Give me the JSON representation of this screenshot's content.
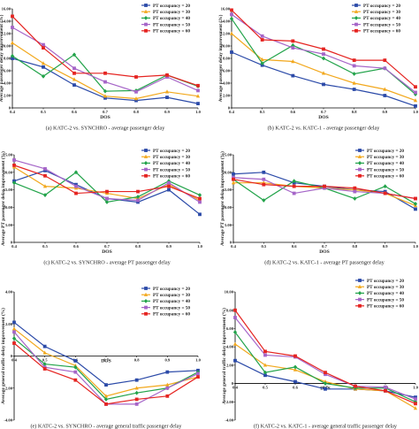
{
  "legend_prefix": "PT occupancy = ",
  "colors": {
    "20": "#2b4aa8",
    "30": "#f2a81d",
    "40": "#22a34a",
    "50": "#a565c8",
    "60": "#e52421"
  },
  "markers": {
    "20": "square",
    "30": "triangle",
    "40": "diamond",
    "50": "square",
    "60": "square"
  },
  "chart_data": [
    {
      "type": "line",
      "caption": "(a) KATC-2 vs. SYNCHRO - average passenger delay",
      "ylabel": "Average passenger delay improvement (%)",
      "xlabel": "DOS",
      "x": [
        0.4,
        0.5,
        0.6,
        0.7,
        0.8,
        0.9,
        1.0
      ],
      "ylim": [
        0,
        16
      ],
      "yticks": [
        0,
        2,
        4,
        6,
        8,
        10,
        12,
        14,
        16
      ],
      "ytick_labels": [
        "0",
        "2.00",
        "4.00",
        "6.00",
        "8.00",
        "10.00",
        "12.00",
        "14.00",
        "16.00"
      ],
      "xtick_labels": [
        "0.4",
        "0.5",
        "0.6",
        "0.7",
        "0.8",
        "0.9",
        "1.0"
      ],
      "xaxis_pos": 0,
      "xlabel_pos": "bottom",
      "series": [
        {
          "name": "PT occupancy = 20",
          "key": "20",
          "values": [
            8.0,
            6.6,
            3.7,
            1.6,
            1.2,
            1.7,
            0.7
          ]
        },
        {
          "name": "PT occupancy = 30",
          "key": "30",
          "values": [
            10.5,
            7.2,
            4.6,
            1.9,
            1.5,
            2.6,
            1.9
          ]
        },
        {
          "name": "PT occupancy = 40",
          "key": "40",
          "values": [
            8.4,
            5.1,
            8.6,
            2.7,
            2.8,
            5.3,
            3.5
          ]
        },
        {
          "name": "PT occupancy = 50",
          "key": "50",
          "values": [
            13.0,
            10.2,
            6.4,
            4.2,
            2.6,
            5.0,
            2.8
          ]
        },
        {
          "name": "PT occupancy = 60",
          "key": "60",
          "values": [
            14.8,
            9.7,
            5.6,
            5.6,
            5.0,
            5.3,
            3.6
          ]
        }
      ]
    },
    {
      "type": "line",
      "caption": "(b) KATC-2 vs. KATC-1 - average passenger delay",
      "ylabel": "Average passenger delay improvement (%)",
      "xlabel": "DOS",
      "x": [
        0.4,
        0.5,
        0.6,
        0.7,
        0.8,
        0.9,
        1.0
      ],
      "ylim": [
        0,
        16
      ],
      "yticks": [
        0,
        2,
        4,
        6,
        8,
        10,
        12,
        14,
        16
      ],
      "ytick_labels": [
        "0",
        "2.00",
        "4.00",
        "6.00",
        "8.00",
        "10.00",
        "12.00",
        "14.00",
        "16.00"
      ],
      "xtick_labels": [
        "0.4",
        "0.5",
        "0.6",
        "0.7",
        "0.8",
        "0.9",
        "1.0"
      ],
      "xaxis_pos": 0,
      "xlabel_pos": "bottom",
      "series": [
        {
          "name": "PT occupancy = 20",
          "key": "20",
          "values": [
            9.0,
            6.9,
            5.2,
            3.8,
            3.0,
            2.0,
            0.3
          ]
        },
        {
          "name": "PT occupancy = 30",
          "key": "30",
          "values": [
            12.0,
            7.8,
            7.5,
            5.6,
            4.0,
            3.0,
            1.2
          ]
        },
        {
          "name": "PT occupancy = 40",
          "key": "40",
          "values": [
            14.4,
            7.2,
            10.1,
            8.0,
            5.5,
            6.4,
            2.2
          ]
        },
        {
          "name": "PT occupancy = 50",
          "key": "50",
          "values": [
            15.1,
            11.6,
            9.7,
            8.7,
            6.8,
            6.4,
            2.5
          ]
        },
        {
          "name": "PT occupancy = 60",
          "key": "60",
          "values": [
            15.8,
            11.0,
            10.8,
            9.5,
            7.7,
            7.7,
            3.4
          ]
        }
      ]
    },
    {
      "type": "line",
      "caption": "(c) KATC-2 vs. SYNCHRO - average PT passenger delay",
      "ylabel": "Average PT passenger delay improvement (%)",
      "xlabel": "DOS",
      "x": [
        0.4,
        0.5,
        0.6,
        0.7,
        0.8,
        0.9,
        1.0
      ],
      "ylim": [
        0,
        25
      ],
      "yticks": [
        0,
        5,
        10,
        15,
        20,
        25
      ],
      "ytick_labels": [
        "0",
        "5.00",
        "10.00",
        "15.00",
        "20.00",
        "25.00"
      ],
      "xtick_labels": [
        "0.4",
        "0.5",
        "0.6",
        "0.7",
        "0.8",
        "0.9",
        "1.0"
      ],
      "xaxis_pos": 0,
      "xlabel_pos": "bottom",
      "series": [
        {
          "name": "PT occupancy = 20",
          "key": "20",
          "values": [
            17.5,
            20.5,
            16.5,
            12.5,
            11.5,
            15.0,
            8.0
          ]
        },
        {
          "name": "PT occupancy = 30",
          "key": "30",
          "values": [
            21.5,
            16.0,
            15.5,
            14.0,
            12.5,
            16.5,
            12.0
          ]
        },
        {
          "name": "PT occupancy = 40",
          "key": "40",
          "values": [
            17.0,
            13.5,
            20.0,
            11.5,
            13.0,
            17.5,
            13.5
          ]
        },
        {
          "name": "PT occupancy = 50",
          "key": "50",
          "values": [
            23.5,
            21.0,
            16.0,
            12.5,
            12.0,
            17.0,
            11.5
          ]
        },
        {
          "name": "PT occupancy = 60",
          "key": "60",
          "values": [
            22.0,
            19.0,
            14.0,
            14.5,
            14.5,
            16.0,
            12.5
          ]
        }
      ]
    },
    {
      "type": "line",
      "caption": "(d) KATC-2 vs. KATC-1 - average PT passenger delay",
      "ylabel": "Average PT passenger delay improvement (%)",
      "xlabel": "DOS",
      "x": [
        0.4,
        0.5,
        0.6,
        0.7,
        0.8,
        0.9,
        1.0
      ],
      "ylim": [
        0,
        25
      ],
      "yticks": [
        0,
        5,
        10,
        15,
        20,
        25
      ],
      "ytick_labels": [
        "0",
        "5.00",
        "10.00",
        "15.00",
        "20.00",
        "25.00"
      ],
      "xtick_labels": [
        "0.4",
        "0.5",
        "0.6",
        "0.7",
        "0.8",
        "0.9",
        "1.0"
      ],
      "xaxis_pos": 0,
      "xlabel_pos": "bottom",
      "series": [
        {
          "name": "PT occupancy = 20",
          "key": "20",
          "values": [
            19.5,
            20.0,
            17.0,
            16.0,
            15.0,
            14.5,
            9.5
          ]
        },
        {
          "name": "PT occupancy = 30",
          "key": "30",
          "values": [
            17.0,
            17.0,
            16.0,
            15.5,
            15.0,
            14.0,
            10.5
          ]
        },
        {
          "name": "PT occupancy = 40",
          "key": "40",
          "values": [
            18.0,
            12.0,
            17.5,
            15.5,
            12.5,
            16.0,
            11.0
          ]
        },
        {
          "name": "PT occupancy = 50",
          "key": "50",
          "values": [
            18.5,
            18.0,
            14.0,
            15.5,
            14.5,
            14.0,
            12.5
          ]
        },
        {
          "name": "PT occupancy = 60",
          "key": "60",
          "values": [
            18.0,
            16.5,
            16.0,
            16.0,
            15.5,
            14.0,
            12.5
          ]
        }
      ]
    },
    {
      "type": "line",
      "caption": "(e) KATC-2 vs. SYNCHRO - average general traffic passenger delay",
      "ylabel": "Average general traffic delay improvement (%)",
      "xlabel": "DOS",
      "x": [
        0.4,
        0.5,
        0.6,
        0.7,
        0.8,
        0.9,
        1.0
      ],
      "ylim": [
        -4,
        4
      ],
      "yticks": [
        -4,
        -2,
        0,
        2,
        4
      ],
      "ytick_labels": [
        "-4.00",
        "-2.00",
        "0",
        "2.00",
        "4.00"
      ],
      "xtick_labels": [
        "0.4",
        "0.5",
        "0.6",
        "0.7",
        "0.8",
        "0.9",
        "1.0"
      ],
      "xaxis_pos": 0,
      "xlabel_pos": "axis",
      "series": [
        {
          "name": "PT occupancy = 20",
          "key": "20",
          "values": [
            2.1,
            0.6,
            -0.3,
            -1.8,
            -1.5,
            -1.0,
            -0.9
          ]
        },
        {
          "name": "PT occupancy = 30",
          "key": "30",
          "values": [
            1.7,
            0.2,
            -0.6,
            -2.5,
            -2.0,
            -1.8,
            -1.3
          ]
        },
        {
          "name": "PT occupancy = 40",
          "key": "40",
          "values": [
            1.1,
            -0.5,
            -0.7,
            -2.7,
            -2.3,
            -2.0,
            -1.0
          ]
        },
        {
          "name": "PT occupancy = 50",
          "key": "50",
          "values": [
            1.5,
            -0.7,
            -1.0,
            -3.0,
            -3.0,
            -2.0,
            -1.1
          ]
        },
        {
          "name": "PT occupancy = 60",
          "key": "60",
          "values": [
            0.8,
            -0.8,
            -1.5,
            -3.0,
            -2.7,
            -2.5,
            -1.3
          ]
        }
      ]
    },
    {
      "type": "line",
      "caption": "(f) KATC-2 vs. KATC-1 - average general traffic passenger delay",
      "ylabel": "Average general traffic delay improvement (%)",
      "xlabel": "DOS",
      "x": [
        0.4,
        0.5,
        0.6,
        0.7,
        0.8,
        0.9,
        1.0
      ],
      "ylim": [
        -4,
        10
      ],
      "yticks": [
        -4,
        -2,
        0,
        2,
        4,
        6,
        8,
        10
      ],
      "ytick_labels": [
        "-4.00",
        "-2.00",
        "0",
        "2.00",
        "4.00",
        "6.00",
        "8.00",
        "10.00"
      ],
      "xtick_labels": [
        "0.4",
        "0.5",
        "0.6",
        "0.7",
        "0.8",
        "0.9",
        "1.0"
      ],
      "xaxis_pos": 0,
      "xlabel_pos": "axis",
      "series": [
        {
          "name": "PT occupancy = 20",
          "key": "20",
          "values": [
            2.5,
            0.9,
            0.2,
            -0.6,
            -0.6,
            -0.8,
            -1.5
          ]
        },
        {
          "name": "PT occupancy = 30",
          "key": "30",
          "values": [
            4.3,
            2.0,
            1.5,
            0.2,
            -0.6,
            -0.8,
            -2.7
          ]
        },
        {
          "name": "PT occupancy = 40",
          "key": "40",
          "values": [
            5.6,
            1.2,
            1.8,
            0.0,
            -0.5,
            -0.5,
            -2.0
          ]
        },
        {
          "name": "PT occupancy = 50",
          "key": "50",
          "values": [
            7.2,
            3.1,
            2.9,
            1.0,
            -0.3,
            -0.4,
            -1.7
          ]
        },
        {
          "name": "PT occupancy = 60",
          "key": "60",
          "values": [
            8.0,
            3.5,
            3.0,
            1.2,
            -0.3,
            -0.8,
            -2.2
          ]
        }
      ]
    }
  ]
}
